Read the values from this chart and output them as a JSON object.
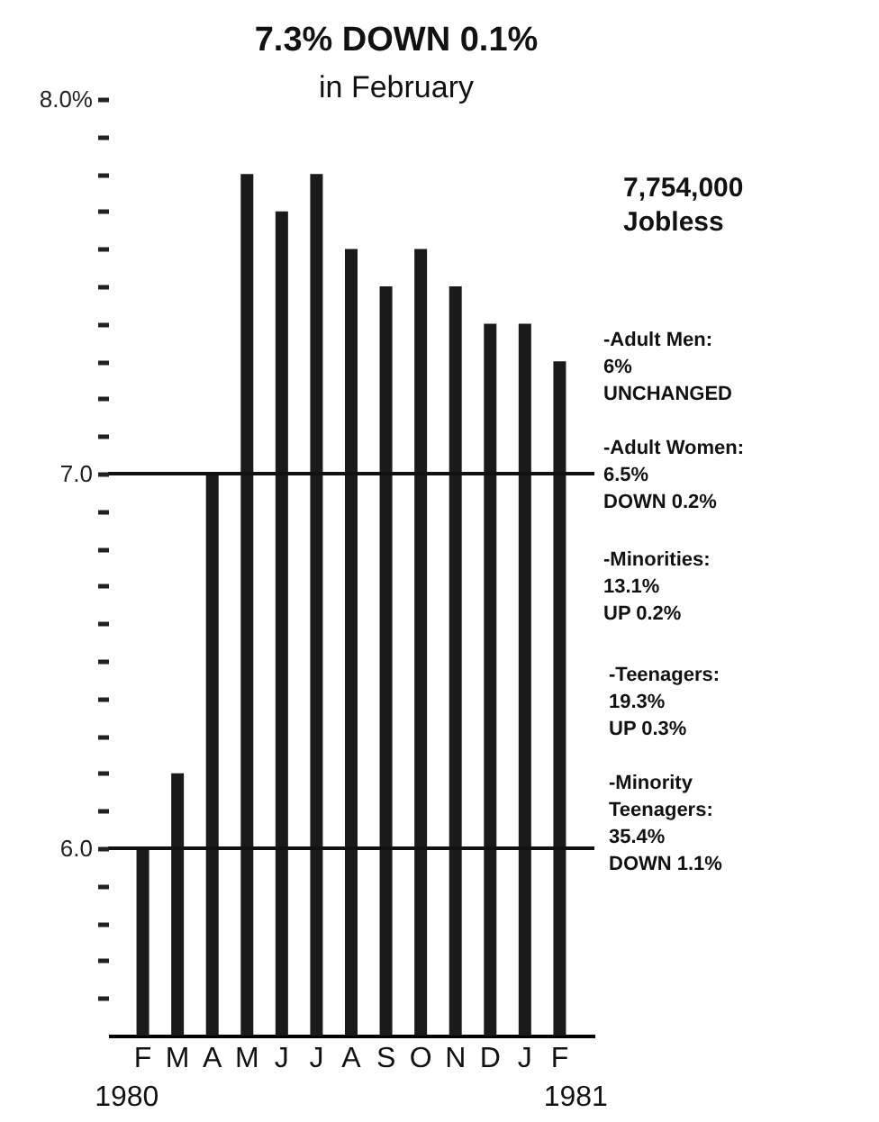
{
  "chart_data": {
    "type": "bar",
    "title": "7.3% DOWN 0.1%",
    "subtitle": "in February",
    "categories": [
      "F",
      "M",
      "A",
      "M",
      "J",
      "J",
      "A",
      "S",
      "O",
      "N",
      "D",
      "J",
      "F"
    ],
    "values": [
      6.0,
      6.2,
      7.0,
      7.8,
      7.7,
      7.8,
      7.6,
      7.5,
      7.6,
      7.5,
      7.4,
      7.4,
      7.3
    ],
    "color": "#1a1a1a",
    "ylim": [
      5.5,
      8.0
    ],
    "yticks": [
      {
        "value": 5.6,
        "label": null
      },
      {
        "value": 5.7,
        "label": null
      },
      {
        "value": 5.8,
        "label": null
      },
      {
        "value": 5.9,
        "label": null
      },
      {
        "value": 6.0,
        "label": "6.0"
      },
      {
        "value": 6.1,
        "label": null
      },
      {
        "value": 6.2,
        "label": null
      },
      {
        "value": 6.3,
        "label": null
      },
      {
        "value": 6.4,
        "label": null
      },
      {
        "value": 6.5,
        "label": null
      },
      {
        "value": 6.6,
        "label": null
      },
      {
        "value": 6.7,
        "label": null
      },
      {
        "value": 6.8,
        "label": null
      },
      {
        "value": 6.9,
        "label": null
      },
      {
        "value": 7.0,
        "label": "7.0"
      },
      {
        "value": 7.1,
        "label": null
      },
      {
        "value": 7.2,
        "label": null
      },
      {
        "value": 7.3,
        "label": null
      },
      {
        "value": 7.4,
        "label": null
      },
      {
        "value": 7.5,
        "label": null
      },
      {
        "value": 7.6,
        "label": null
      },
      {
        "value": 7.7,
        "label": null
      },
      {
        "value": 7.8,
        "label": null
      },
      {
        "value": 7.9,
        "label": null
      },
      {
        "value": 8.0,
        "label": "8.0%"
      }
    ],
    "ref_lines": [
      {
        "axis": "y",
        "value": 7.0
      },
      {
        "axis": "y",
        "value": 6.0
      }
    ],
    "annotations": [
      "7,754,000\nJobless",
      "-Adult Men:\n 6%\n UNCHANGED",
      "-Adult Women:\n 6.5%\n DOWN 0.2%",
      "-Minorities:\n 13.1%\n UP 0.2%",
      "-Teenagers:\n 19.3%\n UP 0.3%",
      "-Minority\n Teenagers:\n 35.4%\n DOWN 1.1%",
      "1980",
      "1981"
    ]
  }
}
